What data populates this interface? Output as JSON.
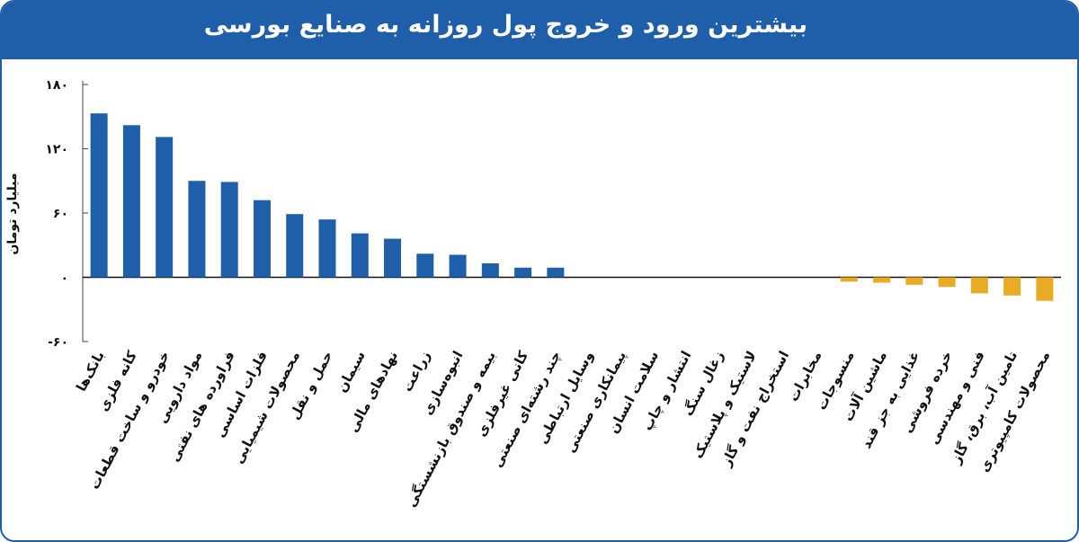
{
  "header": {
    "title": "بیشترین ورود و خروج پول روزانه به صنایع بورسی"
  },
  "colors": {
    "positive": "#1f5ea8",
    "negative": "#e8ab23",
    "header": "#1f5ea8"
  },
  "chart_data": {
    "type": "bar",
    "title": "بیشترین ورود و خروج پول روزانه به صنایع بورسی",
    "ylabel": "میلیارد تومان",
    "ylim": [
      -60,
      180
    ],
    "yticks": [
      -60,
      0,
      60,
      120,
      180
    ],
    "ytick_labels": [
      "-۶۰",
      "۰",
      "۶۰",
      "۱۲۰",
      "۱۸۰"
    ],
    "grid": false,
    "categories": [
      "بانک‌ها",
      "کانه فلزی",
      "خودرو و ساخت قطعات",
      "مواد دارویی",
      "فراورده های نفتی",
      "فلزات اساسی",
      "محصولات شیمیایی",
      "حمل و نقل",
      "سیمان",
      "نهادهای مالی",
      "زراعت",
      "انبوه‌سازی",
      "بیمه و صندوق بازنشستگی",
      "کانی غیرفلزی",
      "چند رشته‌ای صنعتی",
      "وسایل ارتباطی",
      "پیمانکاری صنعتی",
      "سلامت انسان",
      "انتشار و چاپ",
      "زغال سنگ",
      "لاستیک و پلاستیک",
      "استخراج نفت و گاز",
      "مخابرات",
      "منسوجات",
      "ماشین آلات",
      "غذایی به جز قند",
      "خرده فروشی",
      "فنی و مهندسی",
      "تامین آب، برق، گاز",
      "محصولات کامپیوتری"
    ],
    "values": [
      153,
      142,
      131,
      90,
      89,
      72,
      59,
      54,
      41,
      36,
      22,
      21,
      13,
      9,
      9,
      0,
      0,
      0,
      0,
      0,
      0,
      0,
      0,
      -4,
      -5,
      -7,
      -9,
      -15,
      -17,
      -22
    ]
  }
}
